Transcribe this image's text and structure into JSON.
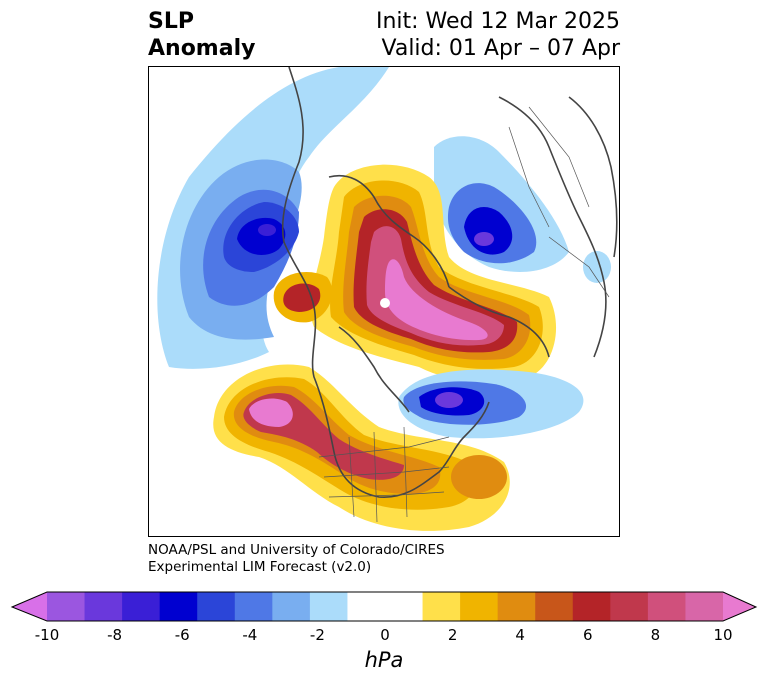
{
  "title": {
    "left_line1": "SLP",
    "left_line2": "Anomaly",
    "right_line1": "Init: Wed 12 Mar 2025",
    "right_line2": "Valid: 01 Apr – 07 Apr"
  },
  "credit": {
    "line1": "NOAA/PSL and University of Colorado/CIRES",
    "line2": "Experimental LIM Forecast (v2.0)"
  },
  "colorbar": {
    "unit": "hPa",
    "ticks": [
      "-10",
      "-8",
      "-6",
      "-4",
      "-2",
      "0",
      "2",
      "4",
      "6",
      "8",
      "10"
    ],
    "colors": [
      "#d870e8",
      "#9b56e0",
      "#6a38dc",
      "#3a1fd6",
      "#0000d0",
      "#2b45d8",
      "#4f78e6",
      "#79aef0",
      "#abdcfa",
      "#ffffff",
      "#ffffff",
      "#ffe04a",
      "#f0b400",
      "#e08c10",
      "#c8561a",
      "#b42428",
      "#c0384c",
      "#d0507c",
      "#d866a8",
      "#e87ad0"
    ]
  },
  "map": {
    "labels": "none",
    "features": [
      "negative anomaly over northeast Pacific",
      "positive anomaly over Arctic",
      "negative anomaly over Scandinavia",
      "negative anomaly near Newfoundland",
      "positive anomaly over eastern Pacific / western US"
    ]
  }
}
